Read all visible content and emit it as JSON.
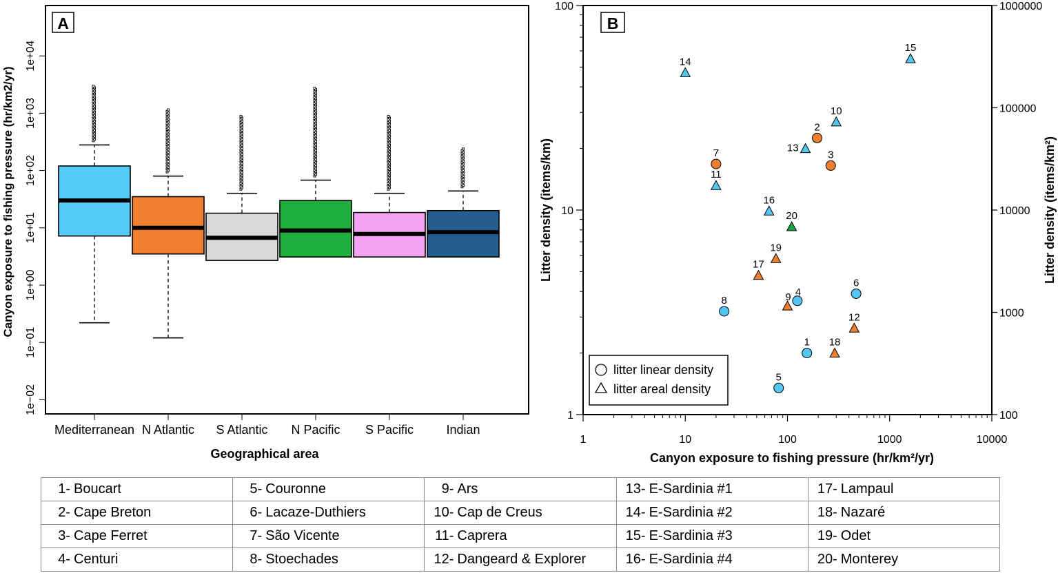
{
  "chart_data": [
    {
      "type": "boxplot",
      "panel_label": "A",
      "xlabel": "Geographical area",
      "ylabel": "Canyon exposure to fishing pressure (hr/km2/yr)",
      "yscale": "log",
      "ylim": [
        0.005,
        60000
      ],
      "yticks": [
        {
          "value": 0.01,
          "label": "1e−02"
        },
        {
          "value": 0.1,
          "label": "1e−01"
        },
        {
          "value": 1,
          "label": "1e+00"
        },
        {
          "value": 10,
          "label": "1e+01"
        },
        {
          "value": 100,
          "label": "1e+02"
        },
        {
          "value": 1000,
          "label": "1e+03"
        },
        {
          "value": 10000,
          "label": "1e+04"
        }
      ],
      "boxes": [
        {
          "category": "Mediterranean",
          "color": "#55CBFA",
          "whisker_low": 0.22,
          "q1": 7.2,
          "median": 30,
          "q3": 120,
          "whisker_high": 280,
          "outlier_max": 3000
        },
        {
          "category": "N Atlantic",
          "color": "#F07F30",
          "whisker_low": 0.12,
          "q1": 3.5,
          "median": 10,
          "q3": 35,
          "whisker_high": 80,
          "outlier_max": 1200
        },
        {
          "category": "S Atlantic",
          "color": "#D9D9D9",
          "whisker_low": null,
          "q1": 2.7,
          "median": 6.7,
          "q3": 18,
          "whisker_high": 40,
          "outlier_max": 900
        },
        {
          "category": "N Pacific",
          "color": "#1FAE3E",
          "whisker_low": null,
          "q1": 3.1,
          "median": 9,
          "q3": 30,
          "whisker_high": 68,
          "outlier_max": 2800
        },
        {
          "category": "S Pacific",
          "color": "#F5A2F2",
          "whisker_low": null,
          "q1": 3.1,
          "median": 7.8,
          "q3": 18.5,
          "whisker_high": 40,
          "outlier_max": 900
        },
        {
          "category": "Indian",
          "color": "#245C8F",
          "whisker_low": null,
          "q1": 3.1,
          "median": 8.4,
          "q3": 20,
          "whisker_high": 44,
          "outlier_max": 250
        }
      ]
    },
    {
      "type": "scatter",
      "panel_label": "B",
      "xlabel": "Canyon exposure to fishing pressure (hr/km²/yr)",
      "ylabel": "Litter density (items/km)",
      "ylabel_right": "Litter density (items/km²)",
      "xscale": "log",
      "yscale": "log",
      "xlim": [
        1,
        10000
      ],
      "ylim": [
        1,
        100
      ],
      "ylim_right": [
        100,
        1000000
      ],
      "xticks": [
        "1",
        "10",
        "100",
        "1000",
        "10000"
      ],
      "yticks": [
        "1",
        "10",
        "100"
      ],
      "yticks_right": [
        "100",
        "1000",
        "10000",
        "100000",
        "1000000"
      ],
      "colors": {
        "blue": "#55C5F2",
        "orange": "#EF7F30",
        "green": "#1FA33C"
      },
      "legend": {
        "position": "bottom-left",
        "circle_label": "litter linear density",
        "triangle_label": "litter areal density"
      },
      "points": [
        {
          "id": "1",
          "x": 155,
          "y": 2.0,
          "shape": "circle",
          "color": "blue"
        },
        {
          "id": "2",
          "x": 195,
          "y": 22.5,
          "shape": "circle",
          "color": "orange"
        },
        {
          "id": "3",
          "x": 265,
          "y": 16.5,
          "shape": "circle",
          "color": "orange"
        },
        {
          "id": "4",
          "x": 125,
          "y": 3.6,
          "shape": "circle",
          "color": "blue"
        },
        {
          "id": "5",
          "x": 82,
          "y": 1.35,
          "shape": "circle",
          "color": "blue"
        },
        {
          "id": "6",
          "x": 470,
          "y": 3.9,
          "shape": "circle",
          "color": "blue"
        },
        {
          "id": "7",
          "x": 20,
          "y": 16.8,
          "shape": "circle",
          "color": "orange"
        },
        {
          "id": "8",
          "x": 24,
          "y": 3.2,
          "shape": "circle",
          "color": "blue"
        },
        {
          "id": "9",
          "x": 100,
          "y": 3.4,
          "shape": "triangle",
          "color": "orange"
        },
        {
          "id": "10",
          "x": 300,
          "y": 27,
          "shape": "triangle",
          "color": "blue"
        },
        {
          "id": "11",
          "x": 20,
          "y": 13.2,
          "shape": "triangle",
          "color": "blue"
        },
        {
          "id": "12",
          "x": 450,
          "y": 2.65,
          "shape": "triangle",
          "color": "orange"
        },
        {
          "id": "13",
          "x": 150,
          "y": 20,
          "shape": "triangle",
          "color": "blue"
        },
        {
          "id": "14",
          "x": 10,
          "y": 47,
          "shape": "triangle",
          "color": "blue"
        },
        {
          "id": "15",
          "x": 1600,
          "y": 55,
          "shape": "triangle",
          "color": "blue"
        },
        {
          "id": "16",
          "x": 66,
          "y": 9.9,
          "shape": "triangle",
          "color": "blue"
        },
        {
          "id": "17",
          "x": 52,
          "y": 4.8,
          "shape": "triangle",
          "color": "orange"
        },
        {
          "id": "18",
          "x": 290,
          "y": 2.0,
          "shape": "triangle",
          "color": "orange"
        },
        {
          "id": "19",
          "x": 77,
          "y": 5.8,
          "shape": "triangle",
          "color": "orange"
        },
        {
          "id": "20",
          "x": 110,
          "y": 8.3,
          "shape": "triangle",
          "color": "green"
        }
      ]
    }
  ],
  "site_table": {
    "columns": [
      [
        {
          "num": "1-",
          "name": "Boucart"
        },
        {
          "num": "2-",
          "name": "Cape Breton"
        },
        {
          "num": "3-",
          "name": "Cape Ferret"
        },
        {
          "num": "4-",
          "name": "Centuri"
        }
      ],
      [
        {
          "num": "5-",
          "name": "Couronne"
        },
        {
          "num": "6-",
          "name": "Lacaze-Duthiers"
        },
        {
          "num": "7-",
          "name": "São Vicente"
        },
        {
          "num": "8-",
          "name": "Stoechades"
        }
      ],
      [
        {
          "num": "9-",
          "name": "Ars"
        },
        {
          "num": "10-",
          "name": "Cap de Creus"
        },
        {
          "num": "11-",
          "name": "Caprera"
        },
        {
          "num": "12-",
          "name": "Dangeard & Explorer"
        }
      ],
      [
        {
          "num": "13-",
          "name": "E-Sardinia #1"
        },
        {
          "num": "14-",
          "name": "E-Sardinia #2"
        },
        {
          "num": "15-",
          "name": "E-Sardinia #3"
        },
        {
          "num": "16-",
          "name": "E-Sardinia #4"
        }
      ],
      [
        {
          "num": "17-",
          "name": "Lampaul"
        },
        {
          "num": "18-",
          "name": "Nazaré"
        },
        {
          "num": "19-",
          "name": "Odet"
        },
        {
          "num": "20-",
          "name": "Monterey"
        }
      ]
    ]
  }
}
